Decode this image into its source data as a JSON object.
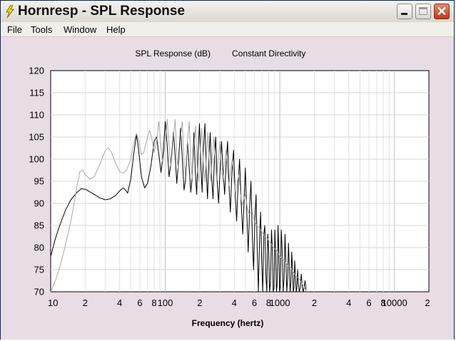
{
  "window": {
    "title": "Hornresp - SPL Response",
    "controls": {
      "minimize": "minimize",
      "maximize": "maximize",
      "close": "close"
    }
  },
  "menu": {
    "items": [
      "File",
      "Tools",
      "Window",
      "Help"
    ]
  },
  "chart_data": {
    "type": "line",
    "title": "SPL Response (dB)",
    "subtitle": "Constant Directivity",
    "xlabel": "Frequency (hertz)",
    "ylabel": "",
    "x_scale": "log",
    "xlim": [
      10,
      20000
    ],
    "ylim": [
      70,
      120
    ],
    "x_tick_labels": [
      "10",
      "2",
      "4",
      "6",
      "8",
      "100",
      "2",
      "4",
      "6",
      "8",
      "1000",
      "2",
      "4",
      "6",
      "8",
      "10000",
      "2"
    ],
    "y_tick_labels": [
      "120",
      "115",
      "110",
      "105",
      "100",
      "95",
      "90",
      "85",
      "80",
      "75",
      "70"
    ],
    "grid": true,
    "series": [
      {
        "color": "#000000",
        "points": [
          [
            10,
            78
          ],
          [
            11,
            82
          ],
          [
            12,
            85
          ],
          [
            13.5,
            88.5
          ],
          [
            15,
            90.8
          ],
          [
            17,
            92.5
          ],
          [
            18.5,
            93.3
          ],
          [
            20,
            93.2
          ],
          [
            23,
            92.3
          ],
          [
            27,
            91.2
          ],
          [
            30,
            90.8
          ],
          [
            33,
            91.0
          ],
          [
            37,
            91.8
          ],
          [
            40,
            92.8
          ],
          [
            43,
            93.5
          ],
          [
            45,
            93.0
          ],
          [
            47,
            92.3
          ],
          [
            50,
            95.5
          ],
          [
            53,
            101
          ],
          [
            56,
            105.5
          ],
          [
            58,
            103
          ],
          [
            62,
            96
          ],
          [
            66,
            93.5
          ],
          [
            70,
            94.5
          ],
          [
            75,
            98.5
          ],
          [
            80,
            104
          ],
          [
            84,
            105
          ],
          [
            88,
            101
          ],
          [
            92,
            97
          ],
          [
            96,
            101.5
          ],
          [
            100,
            108.5
          ],
          [
            104,
            103
          ],
          [
            108,
            96
          ],
          [
            112,
            99
          ],
          [
            118,
            106
          ],
          [
            122,
            101
          ],
          [
            126,
            94.5
          ],
          [
            130,
            99
          ],
          [
            136,
            107
          ],
          [
            141,
            100
          ],
          [
            146,
            93
          ],
          [
            150,
            95
          ],
          [
            156,
            104
          ],
          [
            162,
            98
          ],
          [
            167,
            92.5
          ],
          [
            172,
            96
          ],
          [
            178,
            106
          ],
          [
            183,
            97
          ],
          [
            188,
            92
          ],
          [
            193,
            101
          ],
          [
            199,
            108
          ],
          [
            205,
            98
          ],
          [
            210,
            92.5
          ],
          [
            215,
            102
          ],
          [
            222,
            108
          ],
          [
            228,
            97
          ],
          [
            234,
            91
          ],
          [
            240,
            100
          ],
          [
            247,
            106
          ],
          [
            254,
            96
          ],
          [
            261,
            91
          ],
          [
            268,
            100
          ],
          [
            276,
            105
          ],
          [
            284,
            95
          ],
          [
            292,
            90
          ],
          [
            300,
            97
          ],
          [
            310,
            104
          ],
          [
            320,
            97
          ],
          [
            330,
            92
          ],
          [
            340,
            99
          ],
          [
            350,
            104
          ],
          [
            360,
            94
          ],
          [
            370,
            88
          ],
          [
            382,
            97
          ],
          [
            395,
            102
          ],
          [
            408,
            92
          ],
          [
            420,
            86
          ],
          [
            432,
            94
          ],
          [
            445,
            100
          ],
          [
            460,
            90
          ],
          [
            475,
            83
          ],
          [
            488,
            91
          ],
          [
            500,
            98
          ],
          [
            515,
            88
          ],
          [
            530,
            79
          ],
          [
            545,
            89
          ],
          [
            560,
            95
          ],
          [
            575,
            83
          ],
          [
            590,
            75
          ],
          [
            605,
            86
          ],
          [
            620,
            92
          ],
          [
            635,
            80
          ],
          [
            650,
            70
          ],
          [
            665,
            82
          ],
          [
            680,
            88
          ],
          [
            695,
            77
          ],
          [
            710,
            70
          ],
          [
            725,
            83
          ],
          [
            740,
            85
          ],
          [
            755,
            74
          ],
          [
            770,
            70
          ],
          [
            785,
            83
          ],
          [
            800,
            79
          ],
          [
            815,
            70
          ],
          [
            830,
            72
          ],
          [
            845,
            84
          ],
          [
            860,
            80
          ],
          [
            875,
            70
          ],
          [
            890,
            71
          ],
          [
            905,
            84
          ],
          [
            920,
            78
          ],
          [
            935,
            70
          ],
          [
            950,
            72
          ],
          [
            965,
            85
          ],
          [
            980,
            79
          ],
          [
            995,
            70
          ],
          [
            1010,
            71
          ],
          [
            1030,
            84
          ],
          [
            1050,
            79
          ],
          [
            1070,
            70
          ],
          [
            1090,
            73
          ],
          [
            1110,
            83
          ],
          [
            1130,
            77
          ],
          [
            1150,
            70
          ],
          [
            1170,
            73
          ],
          [
            1190,
            81
          ],
          [
            1210,
            76
          ],
          [
            1230,
            70
          ],
          [
            1250,
            72
          ],
          [
            1270,
            79
          ],
          [
            1290,
            75
          ],
          [
            1310,
            70
          ],
          [
            1330,
            71
          ],
          [
            1350,
            77
          ],
          [
            1370,
            73
          ],
          [
            1390,
            70
          ],
          [
            1410,
            71
          ],
          [
            1430,
            75
          ],
          [
            1450,
            72
          ],
          [
            1480,
            70
          ],
          [
            1510,
            71
          ],
          [
            1540,
            74
          ],
          [
            1570,
            71
          ],
          [
            1600,
            70
          ],
          [
            1630,
            71
          ],
          [
            1660,
            72.5
          ],
          [
            1700,
            70
          ]
        ]
      },
      {
        "color": "#a8a8a8",
        "points": [
          [
            10,
            70
          ],
          [
            11,
            72.5
          ],
          [
            12,
            75.5
          ],
          [
            13,
            79
          ],
          [
            14,
            82.5
          ],
          [
            15,
            86
          ],
          [
            16,
            90
          ],
          [
            17,
            94
          ],
          [
            18,
            97.2
          ],
          [
            19,
            97.5
          ],
          [
            20,
            96.5
          ],
          [
            22,
            95.5
          ],
          [
            24,
            96
          ],
          [
            27,
            99
          ],
          [
            30,
            102
          ],
          [
            32,
            102.5
          ],
          [
            34,
            101.5
          ],
          [
            37,
            99
          ],
          [
            40,
            97.2
          ],
          [
            43,
            96.8
          ],
          [
            46,
            97.5
          ],
          [
            50,
            100
          ],
          [
            53,
            103.5
          ],
          [
            56,
            105.8
          ],
          [
            59,
            104
          ],
          [
            62,
            101
          ],
          [
            65,
            101.5
          ],
          [
            70,
            105
          ],
          [
            73,
            106.5
          ],
          [
            76,
            105
          ],
          [
            80,
            101.5
          ],
          [
            84,
            104
          ],
          [
            88,
            108.5
          ],
          [
            91,
            104
          ],
          [
            95,
            99
          ],
          [
            100,
            104
          ],
          [
            104,
            109
          ],
          [
            108,
            103
          ],
          [
            112,
            98
          ],
          [
            118,
            105
          ],
          [
            122,
            109
          ],
          [
            126,
            101
          ],
          [
            130,
            97.5
          ],
          [
            136,
            105
          ],
          [
            141,
            108.5
          ],
          [
            146,
            99
          ],
          [
            150,
            97
          ],
          [
            156,
            104
          ],
          [
            162,
            108.5
          ],
          [
            167,
            99
          ],
          [
            172,
            95.5
          ],
          [
            178,
            103
          ],
          [
            184,
            107.5
          ],
          [
            190,
            98
          ],
          [
            196,
            95
          ],
          [
            202,
            102
          ],
          [
            208,
            107
          ],
          [
            215,
            99
          ],
          [
            222,
            95
          ],
          [
            229,
            101
          ],
          [
            236,
            106
          ],
          [
            243,
            98
          ],
          [
            250,
            95
          ],
          [
            258,
            101
          ],
          [
            266,
            105
          ],
          [
            274,
            98
          ],
          [
            282,
            95
          ],
          [
            290,
            100
          ],
          [
            300,
            104
          ],
          [
            310,
            97
          ],
          [
            320,
            95
          ],
          [
            330,
            99
          ],
          [
            340,
            102
          ],
          [
            350,
            97
          ],
          [
            360,
            94
          ],
          [
            372,
            97.5
          ],
          [
            385,
            100
          ],
          [
            398,
            95
          ],
          [
            412,
            92
          ],
          [
            426,
            95
          ],
          [
            440,
            96.5
          ],
          [
            455,
            92
          ],
          [
            470,
            89.5
          ],
          [
            485,
            91
          ],
          [
            500,
            92
          ],
          [
            520,
            89
          ],
          [
            540,
            87.5
          ],
          [
            560,
            88
          ],
          [
            580,
            88
          ],
          [
            600,
            86
          ],
          [
            630,
            85
          ],
          [
            660,
            84.5
          ],
          [
            700,
            83.5
          ],
          [
            740,
            82.5
          ],
          [
            780,
            82
          ],
          [
            830,
            81
          ],
          [
            880,
            80
          ],
          [
            930,
            79.5
          ],
          [
            980,
            78.5
          ],
          [
            1040,
            77.5
          ],
          [
            1100,
            77
          ],
          [
            1170,
            76
          ],
          [
            1240,
            75.5
          ],
          [
            1310,
            74.5
          ],
          [
            1390,
            73.5
          ],
          [
            1470,
            73
          ],
          [
            1550,
            72
          ],
          [
            1640,
            71
          ],
          [
            1720,
            70
          ]
        ]
      }
    ]
  }
}
